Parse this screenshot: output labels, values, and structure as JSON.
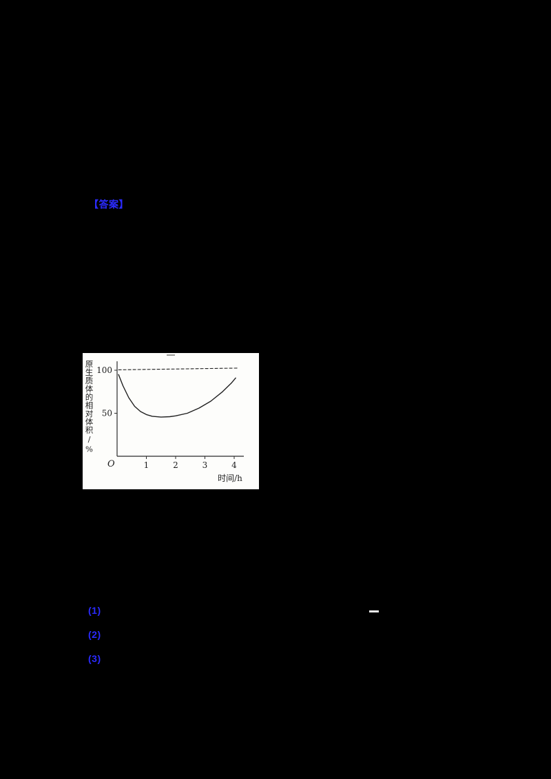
{
  "colors": {
    "page_bg": "#000000",
    "figure_bg": "#fdfdfb",
    "marker_blue": "#2b2bff",
    "ink": "#1c1c1c"
  },
  "markers": {
    "answer_label": "【答案】",
    "items": [
      {
        "label": "(1)"
      },
      {
        "label": "(2)"
      },
      {
        "label": "(3)"
      }
    ]
  },
  "chart_data": {
    "type": "line",
    "title": "",
    "xlabel": "时间/h",
    "ylabel": "原生质体的相对体积/%",
    "origin_label": "O",
    "xticks": [
      1,
      2,
      3,
      4
    ],
    "yticks": [
      50,
      100
    ],
    "xlim": [
      0,
      4.3
    ],
    "ylim": [
      0,
      110
    ],
    "grid": false,
    "legend": "none",
    "series": [
      {
        "name": "reference-dashed-line",
        "style": "dashed",
        "x": [
          0.05,
          4.15
        ],
        "y": [
          100.5,
          102.5
        ]
      },
      {
        "name": "protoplast-volume-curve",
        "style": "solid",
        "x": [
          0.05,
          0.2,
          0.4,
          0.6,
          0.8,
          1.0,
          1.2,
          1.5,
          1.8,
          2.0,
          2.4,
          2.8,
          3.2,
          3.6,
          3.9,
          4.05
        ],
        "y": [
          95,
          82,
          68,
          58,
          52,
          48.5,
          46.5,
          45.5,
          46,
          47,
          50,
          56,
          64,
          75,
          85,
          91
        ]
      }
    ]
  }
}
